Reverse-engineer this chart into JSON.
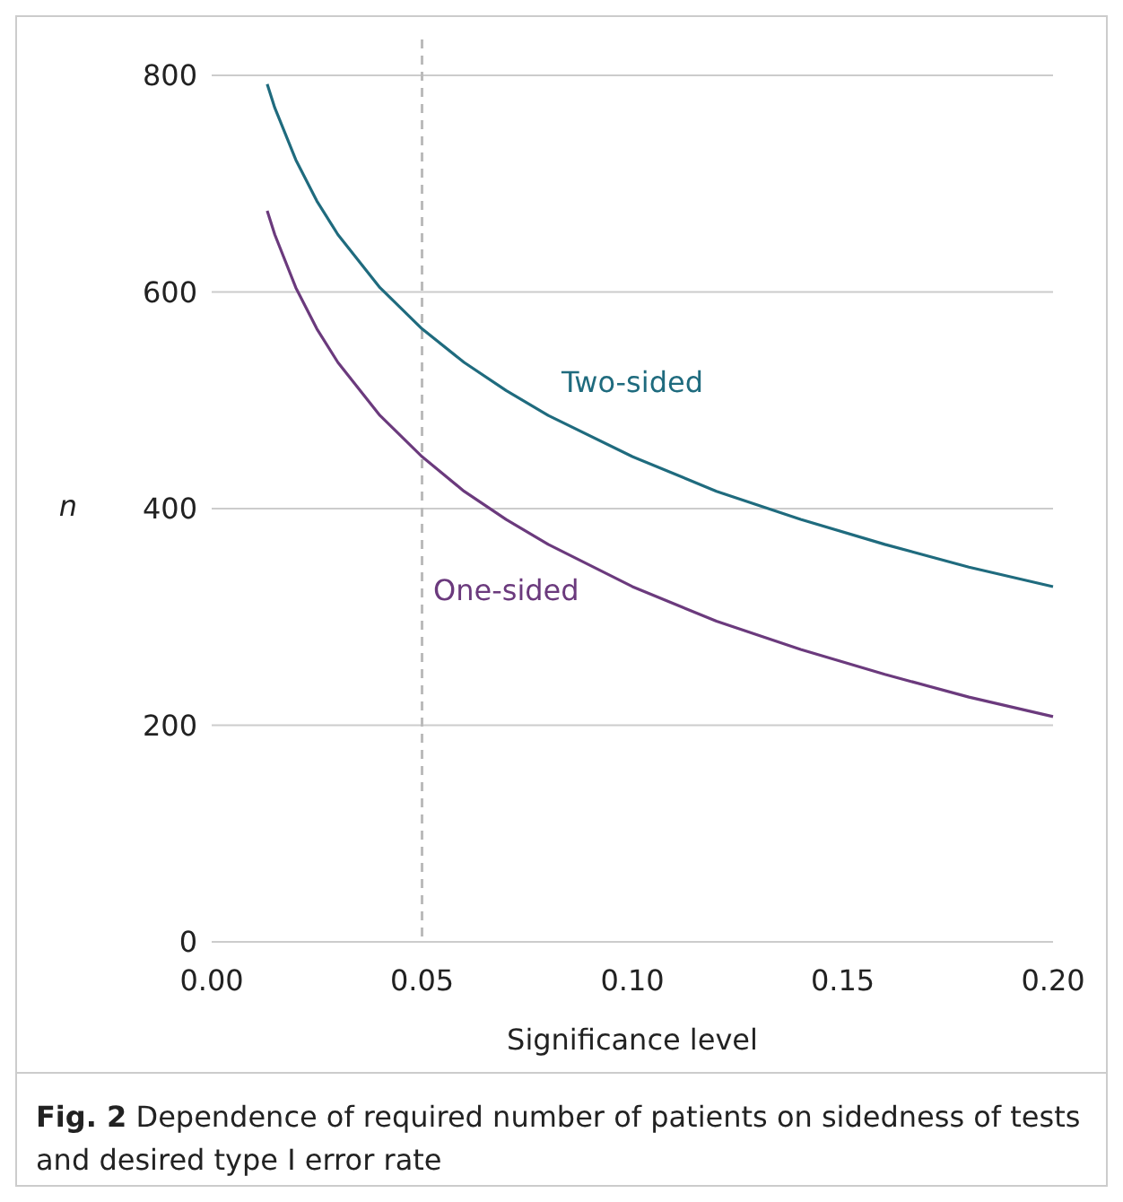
{
  "chart_data": {
    "type": "line",
    "xlabel": "Significance level",
    "ylabel": "n",
    "xlim": [
      0,
      0.2
    ],
    "xticks": [
      {
        "value": 0,
        "label": "0.00"
      },
      {
        "value": 0.05,
        "label": "0.05"
      },
      {
        "value": 0.1,
        "label": "0.10"
      },
      {
        "value": 0.15,
        "label": "0.15"
      },
      {
        "value": 0.2,
        "label": "0.20"
      }
    ],
    "ylim": [
      0,
      800
    ],
    "yticks": [
      0,
      200,
      400,
      600,
      800
    ],
    "grid": "y",
    "x": [
      0.0132,
      0.015,
      0.02,
      0.025,
      0.03,
      0.04,
      0.05,
      0.06,
      0.07,
      0.08,
      0.1,
      0.12,
      0.14,
      0.16,
      0.18,
      0.2
    ],
    "series": [
      {
        "name": "Two-sided",
        "color": "#1f6b7e",
        "values": [
          792,
          770,
          722,
          684,
          653,
          604,
          566,
          535,
          509,
          486,
          448,
          416,
          390,
          367,
          346,
          328
        ]
      },
      {
        "name": "One-sided",
        "color": "#6b3a7d",
        "values": [
          675,
          653,
          604,
          566,
          535,
          486,
          448,
          416,
          390,
          367,
          328,
          296,
          270,
          247,
          226,
          208
        ]
      }
    ],
    "ref_lines": [
      {
        "axis": "x",
        "value": 0.05,
        "color": "#bbbbbb",
        "line_style": "dashed"
      }
    ],
    "annotations": [
      "Fig. 2 Dependence of required number of patients on sidedness of tests and desired type I error rate"
    ]
  }
}
